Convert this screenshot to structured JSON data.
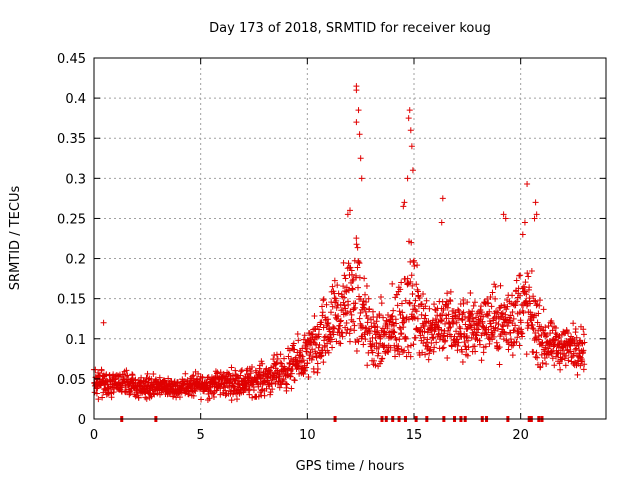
{
  "chart_data": {
    "type": "scatter",
    "title": "Day 173 of 2018, SRMTID for receiver koug",
    "xlabel": "GPS time / hours",
    "ylabel": "SRMTID / TECUs",
    "xlim": [
      0,
      24
    ],
    "ylim": [
      0,
      0.45
    ],
    "grid": true,
    "marker": "+",
    "color": "#e00000",
    "x_ticks": [
      0,
      5,
      10,
      15,
      20
    ],
    "x_tick_labels": [
      "0",
      "5",
      "10",
      "15",
      "20"
    ],
    "y_ticks": [
      0,
      0.05,
      0.1,
      0.15,
      0.2,
      0.25,
      0.3,
      0.35,
      0.4,
      0.45
    ],
    "y_tick_labels": [
      "0",
      "0.05",
      "0.1",
      "0.15",
      "0.2",
      "0.25",
      "0.3",
      "0.35",
      "0.4",
      "0.45"
    ],
    "envelope": {
      "x": [
        0,
        1,
        2,
        3,
        4,
        5,
        6,
        7,
        8,
        9,
        9.5,
        10,
        10.5,
        11,
        11.5,
        12,
        12.3,
        12.6,
        13,
        13.5,
        14,
        14.5,
        14.8,
        15.2,
        15.6,
        16,
        16.5,
        17,
        17.5,
        18,
        18.5,
        19,
        19.5,
        20,
        20.3,
        20.6,
        21,
        21.5,
        22,
        22.5,
        23
      ],
      "base": [
        0.045,
        0.045,
        0.04,
        0.04,
        0.04,
        0.042,
        0.045,
        0.045,
        0.05,
        0.06,
        0.07,
        0.08,
        0.09,
        0.11,
        0.13,
        0.15,
        0.16,
        0.13,
        0.1,
        0.1,
        0.11,
        0.13,
        0.15,
        0.13,
        0.11,
        0.12,
        0.12,
        0.11,
        0.11,
        0.12,
        0.12,
        0.12,
        0.12,
        0.14,
        0.14,
        0.12,
        0.1,
        0.09,
        0.09,
        0.09,
        0.09
      ],
      "spread": [
        0.025,
        0.025,
        0.02,
        0.02,
        0.02,
        0.022,
        0.025,
        0.025,
        0.03,
        0.035,
        0.04,
        0.045,
        0.06,
        0.07,
        0.08,
        0.09,
        0.12,
        0.08,
        0.06,
        0.06,
        0.07,
        0.09,
        0.1,
        0.08,
        0.06,
        0.06,
        0.06,
        0.06,
        0.06,
        0.06,
        0.06,
        0.06,
        0.07,
        0.08,
        0.08,
        0.07,
        0.05,
        0.04,
        0.04,
        0.04,
        0.04
      ]
    },
    "peaks": [
      {
        "x": 0.45,
        "y": 0.12
      },
      {
        "x": 12.3,
        "y": 0.415
      },
      {
        "x": 12.3,
        "y": 0.41
      },
      {
        "x": 12.4,
        "y": 0.385
      },
      {
        "x": 12.45,
        "y": 0.355
      },
      {
        "x": 12.5,
        "y": 0.325
      },
      {
        "x": 12.55,
        "y": 0.3
      },
      {
        "x": 12.3,
        "y": 0.37
      },
      {
        "x": 14.8,
        "y": 0.385
      },
      {
        "x": 14.75,
        "y": 0.375
      },
      {
        "x": 14.85,
        "y": 0.36
      },
      {
        "x": 14.9,
        "y": 0.34
      },
      {
        "x": 14.95,
        "y": 0.31
      },
      {
        "x": 14.7,
        "y": 0.3
      },
      {
        "x": 14.55,
        "y": 0.27
      },
      {
        "x": 14.5,
        "y": 0.265
      },
      {
        "x": 16.3,
        "y": 0.245
      },
      {
        "x": 16.35,
        "y": 0.275
      },
      {
        "x": 19.2,
        "y": 0.255
      },
      {
        "x": 19.3,
        "y": 0.25
      },
      {
        "x": 20.3,
        "y": 0.293
      },
      {
        "x": 20.7,
        "y": 0.27
      },
      {
        "x": 20.75,
        "y": 0.255
      },
      {
        "x": 20.65,
        "y": 0.25
      },
      {
        "x": 12.0,
        "y": 0.26
      },
      {
        "x": 11.9,
        "y": 0.255
      },
      {
        "x": 20.2,
        "y": 0.245
      },
      {
        "x": 20.1,
        "y": 0.23
      }
    ],
    "zero_markers": [
      1.3,
      2.9,
      11.3,
      13.5,
      13.7,
      14.0,
      14.3,
      14.6,
      15.1,
      15.6,
      16.4,
      16.9,
      17.2,
      17.4,
      18.2,
      18.4,
      19.4,
      20.4,
      20.5,
      20.85,
      21.0
    ]
  }
}
